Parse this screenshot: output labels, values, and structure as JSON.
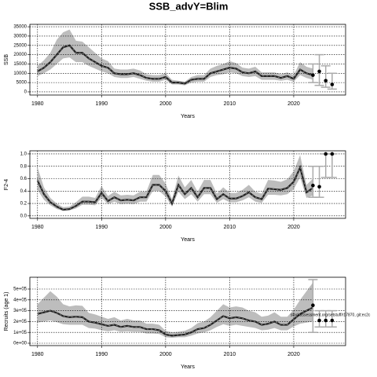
{
  "title": "SSB_advY=Blim",
  "chart_data": [
    {
      "type": "band-line",
      "ylabel": "SSB",
      "xlabel": "Years",
      "xlim": [
        1978.8,
        2028.1
      ],
      "xticks": [
        1980,
        1990,
        2000,
        2010,
        2020
      ],
      "ylim": [
        -1700,
        36300
      ],
      "yticks": [
        0,
        5000,
        10000,
        15000,
        20000,
        25000,
        30000,
        35000
      ],
      "grid": true,
      "x": [
        1980,
        1981,
        1982,
        1983,
        1984,
        1985,
        1986,
        1987,
        1988,
        1989,
        1990,
        1991,
        1992,
        1993,
        1994,
        1995,
        1996,
        1997,
        1998,
        1999,
        2000,
        2001,
        2002,
        2003,
        2004,
        2005,
        2006,
        2007,
        2008,
        2009,
        2010,
        2011,
        2012,
        2013,
        2014,
        2015,
        2016,
        2017,
        2018,
        2019,
        2020,
        2021,
        2022,
        2023
      ],
      "values": [
        11000,
        13000,
        16000,
        20000,
        24000,
        25000,
        21000,
        21000,
        18000,
        16000,
        14000,
        13000,
        10000,
        9500,
        9500,
        10000,
        9000,
        7500,
        7000,
        7000,
        8000,
        5000,
        5000,
        4500,
        6500,
        7000,
        7000,
        10000,
        11000,
        12000,
        13000,
        12500,
        10500,
        10000,
        11000,
        8500,
        8500,
        8500,
        7500,
        8500,
        7000,
        12000,
        10000,
        9000
      ],
      "lower": [
        8500,
        10000,
        12000,
        15000,
        18000,
        18500,
        16000,
        16000,
        14000,
        12500,
        11000,
        10000,
        8000,
        7500,
        7500,
        8000,
        7000,
        6000,
        5500,
        5500,
        6500,
        4000,
        4000,
        3500,
        5000,
        5500,
        5500,
        8000,
        9000,
        9500,
        10500,
        10000,
        8500,
        8000,
        8500,
        6500,
        6500,
        6500,
        6000,
        6500,
        5500,
        9000,
        7500,
        6500
      ],
      "upper": [
        14000,
        17000,
        21000,
        28000,
        32000,
        33500,
        27500,
        27000,
        24000,
        21000,
        18000,
        16500,
        12500,
        12000,
        12000,
        12500,
        11500,
        9500,
        9000,
        9000,
        10000,
        6500,
        6000,
        5500,
        8000,
        9000,
        9000,
        12500,
        14000,
        15000,
        16500,
        15500,
        13000,
        12500,
        13500,
        10500,
        10500,
        10500,
        9500,
        10500,
        9000,
        16000,
        13500,
        12500
      ],
      "projection": {
        "x": [
          2023,
          2024,
          2025,
          2026
        ],
        "values": [
          9000,
          11000,
          6000,
          4000
        ],
        "lower": [
          5000,
          3500,
          2500,
          1500
        ],
        "upper": [
          15000,
          20000,
          14000,
          10000
        ]
      }
    },
    {
      "type": "band-line",
      "ylabel": "F2-4",
      "xlabel": "Years",
      "xlim": [
        1978.8,
        2028.1
      ],
      "xticks": [
        1980,
        1990,
        2000,
        2010,
        2020
      ],
      "ylim": [
        -0.04,
        1.05
      ],
      "yticks": [
        {
          "value": 0,
          "label": "0.0"
        },
        0.2,
        0.4,
        0.6,
        0.8,
        {
          "value": 1,
          "label": "1.0"
        }
      ],
      "grid": true,
      "x": [
        1980,
        1981,
        1982,
        1983,
        1984,
        1985,
        1986,
        1987,
        1988,
        1989,
        1990,
        1991,
        1992,
        1993,
        1994,
        1995,
        1996,
        1997,
        1998,
        1999,
        2000,
        2001,
        2002,
        2003,
        2004,
        2005,
        2006,
        2007,
        2008,
        2009,
        2010,
        2011,
        2012,
        2013,
        2014,
        2015,
        2016,
        2017,
        2018,
        2019,
        2020,
        2021,
        2022,
        2023
      ],
      "values": [
        0.57,
        0.35,
        0.22,
        0.15,
        0.1,
        0.11,
        0.16,
        0.23,
        0.23,
        0.22,
        0.37,
        0.24,
        0.3,
        0.25,
        0.26,
        0.25,
        0.3,
        0.3,
        0.5,
        0.5,
        0.4,
        0.2,
        0.5,
        0.35,
        0.45,
        0.3,
        0.45,
        0.45,
        0.27,
        0.35,
        0.28,
        0.28,
        0.32,
        0.38,
        0.3,
        0.27,
        0.44,
        0.43,
        0.42,
        0.45,
        0.55,
        0.78,
        0.38,
        0.45
      ],
      "lower": [
        0.42,
        0.26,
        0.17,
        0.11,
        0.08,
        0.09,
        0.12,
        0.18,
        0.18,
        0.17,
        0.29,
        0.19,
        0.23,
        0.19,
        0.2,
        0.19,
        0.23,
        0.23,
        0.4,
        0.4,
        0.31,
        0.15,
        0.39,
        0.27,
        0.35,
        0.23,
        0.35,
        0.35,
        0.21,
        0.27,
        0.22,
        0.22,
        0.25,
        0.3,
        0.23,
        0.21,
        0.34,
        0.34,
        0.33,
        0.35,
        0.43,
        0.62,
        0.29,
        0.33
      ],
      "upper": [
        0.78,
        0.46,
        0.29,
        0.2,
        0.14,
        0.15,
        0.22,
        0.31,
        0.31,
        0.29,
        0.48,
        0.32,
        0.39,
        0.33,
        0.34,
        0.33,
        0.39,
        0.39,
        0.66,
        0.66,
        0.52,
        0.27,
        0.65,
        0.46,
        0.58,
        0.39,
        0.58,
        0.58,
        0.36,
        0.46,
        0.37,
        0.37,
        0.42,
        0.5,
        0.39,
        0.36,
        0.58,
        0.57,
        0.55,
        0.59,
        0.72,
        0.98,
        0.5,
        0.6
      ],
      "projection": {
        "x": [
          2023,
          2024,
          2025,
          2026
        ],
        "values": [
          0.49,
          0.47,
          1.0,
          1.0
        ],
        "lower": [
          0.3,
          0.3,
          0.62,
          0.62
        ],
        "upper": [
          0.8,
          0.8,
          1.0,
          1.0
        ]
      }
    },
    {
      "type": "band-line",
      "ylabel": "Recruits (age 1)",
      "xlabel": "Years",
      "annotation": "stockassessment.org/setstuff/r17870, git:ec2c",
      "xlim": [
        1978.8,
        2028.1
      ],
      "xticks": [
        1980,
        1990,
        2000,
        2010,
        2020
      ],
      "ylim": [
        -21700,
        608700
      ],
      "yticks": [
        {
          "value": 0,
          "label": "0e+00"
        },
        {
          "value": 100000,
          "label": "1e+05"
        },
        {
          "value": 200000,
          "label": "2e+05"
        },
        {
          "value": 300000,
          "label": "3e+05"
        },
        {
          "value": 400000,
          "label": "4e+05"
        },
        {
          "value": 500000,
          "label": "5e+05"
        }
      ],
      "grid": true,
      "x": [
        1980,
        1981,
        1982,
        1983,
        1984,
        1985,
        1986,
        1987,
        1988,
        1989,
        1990,
        1991,
        1992,
        1993,
        1994,
        1995,
        1996,
        1997,
        1998,
        1999,
        2000,
        2001,
        2002,
        2003,
        2004,
        2005,
        2006,
        2007,
        2008,
        2009,
        2010,
        2011,
        2012,
        2013,
        2014,
        2015,
        2016,
        2017,
        2018,
        2019,
        2020,
        2021,
        2022,
        2023
      ],
      "values": [
        270000,
        285000,
        300000,
        280000,
        250000,
        240000,
        245000,
        240000,
        200000,
        190000,
        175000,
        160000,
        170000,
        150000,
        160000,
        150000,
        150000,
        130000,
        130000,
        120000,
        80000,
        70000,
        75000,
        80000,
        100000,
        130000,
        140000,
        170000,
        210000,
        250000,
        230000,
        240000,
        230000,
        210000,
        200000,
        170000,
        180000,
        200000,
        170000,
        170000,
        220000,
        270000,
        300000,
        330000
      ],
      "lower": [
        190000,
        200000,
        210000,
        195000,
        175000,
        170000,
        170000,
        170000,
        140000,
        135000,
        120000,
        110000,
        120000,
        105000,
        110000,
        105000,
        105000,
        90000,
        90000,
        85000,
        55000,
        50000,
        55000,
        55000,
        70000,
        90000,
        100000,
        120000,
        150000,
        175000,
        160000,
        170000,
        160000,
        150000,
        140000,
        120000,
        125000,
        140000,
        120000,
        120000,
        155000,
        180000,
        190000,
        200000
      ],
      "upper": [
        360000,
        420000,
        480000,
        430000,
        360000,
        340000,
        350000,
        345000,
        280000,
        265000,
        245000,
        225000,
        240000,
        210000,
        225000,
        210000,
        210000,
        180000,
        180000,
        170000,
        115000,
        100000,
        105000,
        115000,
        140000,
        185000,
        200000,
        240000,
        300000,
        360000,
        330000,
        340000,
        330000,
        300000,
        285000,
        245000,
        255000,
        285000,
        245000,
        245000,
        310000,
        400000,
        480000,
        560000
      ],
      "projection": {
        "x": [
          2023,
          2024,
          2025,
          2026
        ],
        "values": [
          350000,
          210000,
          210000,
          210000
        ],
        "lower": [
          100000,
          150000,
          150000,
          150000
        ],
        "upper": [
          587000,
          300000,
          300000,
          300000
        ]
      }
    }
  ]
}
